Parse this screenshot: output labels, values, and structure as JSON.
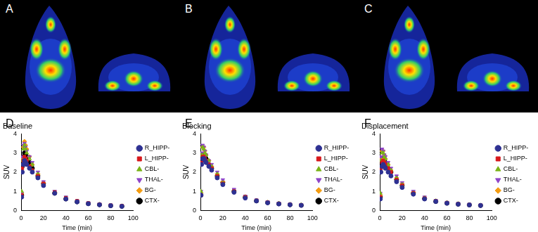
{
  "image_panels": [
    "A",
    "B",
    "C"
  ],
  "chart_data": [
    {
      "type": "scatter",
      "panel": "D",
      "title": "Baseline",
      "x_label": "Time (min)",
      "y_label": "SUV",
      "xlim": [
        0,
        100
      ],
      "xticks": [
        0,
        20,
        40,
        60,
        80,
        100
      ],
      "ylim": [
        0,
        4
      ],
      "yticks": [
        0,
        1,
        2,
        3,
        4
      ],
      "grid": false,
      "legend": "right",
      "x": [
        0.5,
        1,
        2,
        3,
        4,
        5,
        7.5,
        10,
        15,
        20,
        30,
        40,
        50,
        60,
        70,
        80,
        90
      ],
      "series": [
        {
          "name": "R_HIPP-",
          "color": "#2e3192",
          "marker": "circle",
          "values": [
            0.7,
            2.0,
            2.4,
            2.6,
            2.5,
            2.4,
            2.2,
            2.0,
            1.7,
            1.3,
            0.9,
            0.6,
            0.45,
            0.35,
            0.3,
            0.25,
            0.22
          ]
        },
        {
          "name": "L_HIPP-",
          "color": "#d7191c",
          "marker": "square",
          "values": [
            0.8,
            2.2,
            2.6,
            2.8,
            2.7,
            2.6,
            2.3,
            2.1,
            1.8,
            1.4,
            0.95,
            0.65,
            0.5,
            0.38,
            0.32,
            0.27,
            0.24
          ]
        },
        {
          "name": "CBL-",
          "color": "#7ab317",
          "marker": "triangle",
          "values": [
            1.0,
            2.6,
            3.2,
            3.4,
            3.2,
            3.0,
            2.7,
            2.4,
            1.9,
            1.4,
            0.95,
            0.65,
            0.48,
            0.37,
            0.31,
            0.26,
            0.23
          ]
        },
        {
          "name": "THAL-",
          "color": "#8e44c8",
          "marker": "triangle_down",
          "values": [
            0.9,
            2.8,
            3.4,
            3.5,
            3.3,
            3.1,
            2.8,
            2.5,
            2.0,
            1.5,
            1.0,
            0.7,
            0.5,
            0.4,
            0.33,
            0.28,
            0.25
          ]
        },
        {
          "name": "BG-",
          "color": "#f39c12",
          "marker": "diamond",
          "values": [
            0.9,
            2.7,
            3.3,
            3.6,
            3.4,
            3.2,
            2.8,
            2.4,
            1.9,
            1.45,
            0.95,
            0.65,
            0.48,
            0.38,
            0.32,
            0.27,
            0.24
          ]
        },
        {
          "name": "CTX-",
          "color": "#000000",
          "marker": "circle",
          "values": [
            0.8,
            2.3,
            2.8,
            3.0,
            2.9,
            2.8,
            2.5,
            2.2,
            1.8,
            1.4,
            0.9,
            0.6,
            0.45,
            0.36,
            0.3,
            0.25,
            0.22
          ]
        }
      ]
    },
    {
      "type": "scatter",
      "panel": "E",
      "title": "Blocking",
      "x_label": "Time (min)",
      "y_label": "SUV",
      "xlim": [
        0,
        100
      ],
      "xticks": [
        0,
        20,
        40,
        60,
        80,
        100
      ],
      "ylim": [
        0,
        4
      ],
      "yticks": [
        0,
        1,
        2,
        3,
        4
      ],
      "grid": false,
      "legend": "right",
      "x": [
        0.5,
        1,
        2,
        3,
        4,
        5,
        7.5,
        10,
        15,
        20,
        30,
        40,
        50,
        60,
        70,
        80,
        90
      ],
      "series": [
        {
          "name": "R_HIPP-",
          "color": "#2e3192",
          "marker": "circle",
          "values": [
            0.8,
            2.4,
            2.7,
            2.7,
            2.6,
            2.5,
            2.3,
            2.1,
            1.7,
            1.35,
            0.95,
            0.65,
            0.5,
            0.4,
            0.34,
            0.3,
            0.27
          ]
        },
        {
          "name": "L_HIPP-",
          "color": "#d7191c",
          "marker": "square",
          "values": [
            0.8,
            2.5,
            2.8,
            2.8,
            2.7,
            2.6,
            2.4,
            2.2,
            1.8,
            1.4,
            1.0,
            0.7,
            0.52,
            0.42,
            0.36,
            0.31,
            0.28
          ]
        },
        {
          "name": "CBL-",
          "color": "#7ab317",
          "marker": "triangle",
          "values": [
            1.0,
            2.9,
            3.3,
            3.2,
            3.0,
            2.9,
            2.6,
            2.3,
            1.9,
            1.45,
            1.0,
            0.7,
            0.52,
            0.42,
            0.36,
            0.31,
            0.28
          ]
        },
        {
          "name": "THAL-",
          "color": "#8e44c8",
          "marker": "triangle_down",
          "values": [
            1.0,
            3.0,
            3.4,
            3.3,
            3.1,
            2.9,
            2.6,
            2.4,
            2.0,
            1.6,
            1.1,
            0.75,
            0.55,
            0.45,
            0.38,
            0.33,
            0.3
          ]
        },
        {
          "name": "BG-",
          "color": "#f39c12",
          "marker": "diamond",
          "values": [
            0.9,
            2.9,
            3.3,
            3.3,
            3.1,
            2.9,
            2.6,
            2.3,
            1.9,
            1.5,
            1.0,
            0.72,
            0.53,
            0.43,
            0.37,
            0.32,
            0.29
          ]
        },
        {
          "name": "CTX-",
          "color": "#000000",
          "marker": "circle",
          "values": [
            0.8,
            2.6,
            2.9,
            2.9,
            2.8,
            2.7,
            2.4,
            2.2,
            1.8,
            1.45,
            1.0,
            0.7,
            0.5,
            0.41,
            0.35,
            0.3,
            0.27
          ]
        }
      ]
    },
    {
      "type": "scatter",
      "panel": "F",
      "title": "Displacement",
      "x_label": "Time (min)",
      "y_label": "SUV",
      "xlim": [
        0,
        100
      ],
      "xticks": [
        0,
        20,
        40,
        60,
        80,
        100
      ],
      "ylim": [
        0,
        4
      ],
      "yticks": [
        0,
        1,
        2,
        3,
        4
      ],
      "grid": false,
      "legend": "right",
      "x": [
        0.5,
        1,
        2,
        3,
        4,
        5,
        7.5,
        10,
        15,
        20,
        30,
        40,
        50,
        60,
        70,
        80,
        90
      ],
      "series": [
        {
          "name": "R_HIPP-",
          "color": "#2e3192",
          "marker": "circle",
          "values": [
            0.6,
            2.0,
            2.3,
            2.4,
            2.3,
            2.2,
            2.0,
            1.8,
            1.5,
            1.2,
            0.85,
            0.6,
            0.47,
            0.38,
            0.33,
            0.29,
            0.26
          ]
        },
        {
          "name": "L_HIPP-",
          "color": "#d7191c",
          "marker": "square",
          "values": [
            0.7,
            2.2,
            2.5,
            2.6,
            2.5,
            2.4,
            2.2,
            2.0,
            1.6,
            1.3,
            0.9,
            0.63,
            0.49,
            0.4,
            0.34,
            0.3,
            0.27
          ]
        },
        {
          "name": "CBL-",
          "color": "#7ab317",
          "marker": "triangle",
          "values": [
            0.9,
            2.6,
            3.0,
            3.0,
            2.8,
            2.7,
            2.4,
            2.1,
            1.7,
            1.35,
            0.92,
            0.65,
            0.5,
            0.4,
            0.35,
            0.3,
            0.27
          ]
        },
        {
          "name": "THAL-",
          "color": "#8e44c8",
          "marker": "triangle_down",
          "values": [
            0.9,
            2.8,
            3.2,
            3.1,
            2.9,
            2.8,
            2.5,
            2.2,
            1.8,
            1.45,
            1.0,
            0.7,
            0.52,
            0.42,
            0.36,
            0.31,
            0.28
          ]
        },
        {
          "name": "BG-",
          "color": "#f39c12",
          "marker": "diamond",
          "values": [
            0.8,
            2.7,
            3.1,
            3.1,
            2.9,
            2.7,
            2.4,
            2.1,
            1.7,
            1.4,
            0.95,
            0.67,
            0.5,
            0.41,
            0.35,
            0.3,
            0.27
          ]
        },
        {
          "name": "CTX-",
          "color": "#000000",
          "marker": "circle",
          "values": [
            0.7,
            2.3,
            2.6,
            2.7,
            2.6,
            2.5,
            2.2,
            2.0,
            1.6,
            1.3,
            0.9,
            0.62,
            0.47,
            0.38,
            0.33,
            0.29,
            0.26
          ]
        }
      ]
    }
  ]
}
